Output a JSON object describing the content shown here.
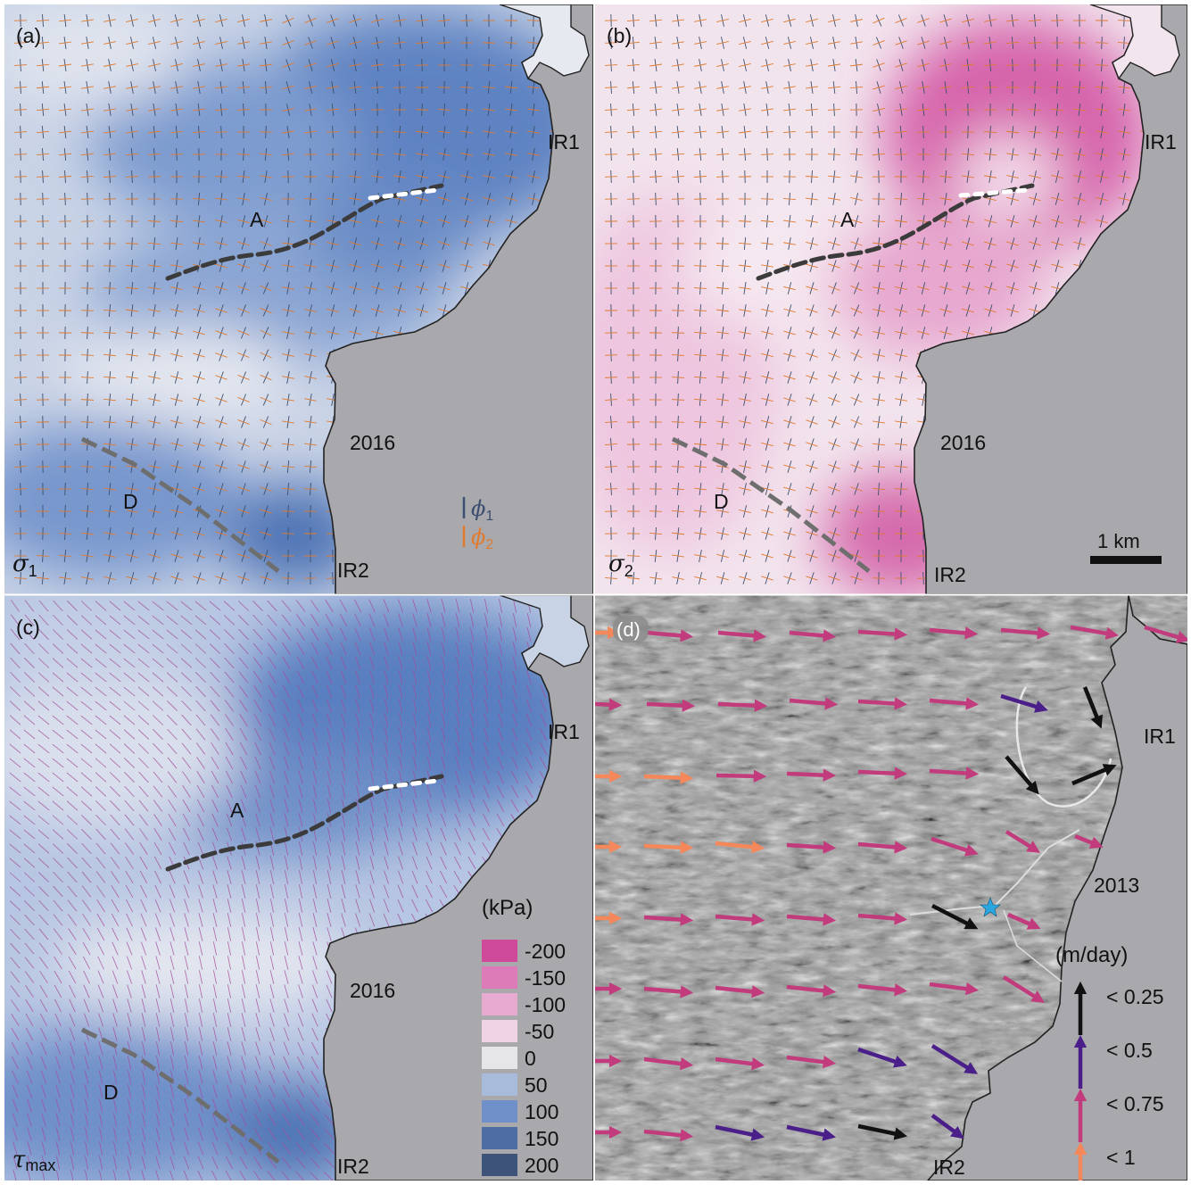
{
  "panels": {
    "a": {
      "label": "(a)",
      "year": "2016",
      "feature_a": "A",
      "feature_d": "D",
      "rift_1": "IR1",
      "rift_2": "IR2",
      "quantity_symbol": "σ",
      "quantity_subscript": "1",
      "legend_phi1_symbol": "ϕ",
      "legend_phi1_subscript": "1",
      "legend_phi2_symbol": "ϕ",
      "legend_phi2_subscript": "2"
    },
    "b": {
      "label": "(b)",
      "year": "2016",
      "feature_a": "A",
      "feature_d": "D",
      "rift_1": "IR1",
      "rift_2": "IR2",
      "quantity_symbol": "σ",
      "quantity_subscript": "2",
      "scale_bar_label": "1 km"
    },
    "c": {
      "label": "(c)",
      "year": "2016",
      "feature_a": "A",
      "feature_d": "D",
      "rift_1": "IR1",
      "rift_2": "IR2",
      "quantity_symbol": "τ",
      "quantity_subscript": "max"
    },
    "d": {
      "label": "(d)",
      "year": "2013",
      "rift_1": "IR1",
      "rift_2": "IR2"
    }
  },
  "stress_colorbar": {
    "title": "(kPa)",
    "entries": [
      {
        "label": "-200",
        "color": "#cf4a9b"
      },
      {
        "label": "-150",
        "color": "#dc7bb8"
      },
      {
        "label": "-100",
        "color": "#e7abd2"
      },
      {
        "label": "-50",
        "color": "#f0d3e5"
      },
      {
        "label": "0",
        "color": "#e6e6e9"
      },
      {
        "label": "50",
        "color": "#a9bbdb"
      },
      {
        "label": "100",
        "color": "#6f90c8"
      },
      {
        "label": "150",
        "color": "#4e6da3"
      },
      {
        "label": "200",
        "color": "#3d5478"
      }
    ]
  },
  "velocity_legend": {
    "title": "(m/day)",
    "entries": [
      {
        "label": "< 0.25",
        "color": "#111111"
      },
      {
        "label": "< 0.5",
        "color": "#4b1f8a"
      },
      {
        "label": "< 0.75",
        "color": "#c23b7c"
      },
      {
        "label": "< 1",
        "color": "#f4885a"
      }
    ]
  },
  "colors": {
    "land": "#a9a9ad",
    "coast": "#222222",
    "phi1": "#3d4f6e",
    "phi2": "#e07a2e",
    "tau_direction": "#a64b9b",
    "fracture_a": "#3b3b3b",
    "fracture_d": "#6e6e6e",
    "star": "#2aa7e0"
  }
}
